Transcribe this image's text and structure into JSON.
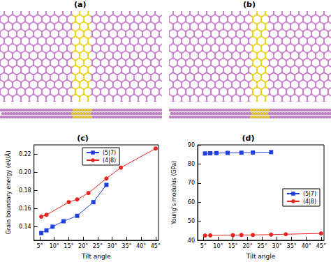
{
  "panels": [
    {
      "label": "(a)"
    },
    {
      "label": "(b)"
    }
  ],
  "chart_data": [
    {
      "type": "line",
      "title": "(c)",
      "x_label": "Tilt angle",
      "y_label": "Grain boundary energy (eV/Å)",
      "xlim": [
        3,
        46
      ],
      "xticks": [
        {
          "value": 5,
          "label": "5°"
        },
        {
          "value": 10,
          "label": "10°"
        },
        {
          "value": 15,
          "label": "15°"
        },
        {
          "value": 20,
          "label": "20°"
        },
        {
          "value": 25,
          "label": "25°"
        },
        {
          "value": 30,
          "label": "30°"
        },
        {
          "value": 35,
          "label": "35°"
        },
        {
          "value": 40,
          "label": "40°"
        },
        {
          "value": 45,
          "label": "45°"
        }
      ],
      "ylim": [
        0.125,
        0.23
      ],
      "yticks": [
        0.14,
        0.16,
        0.18,
        {
          "value": 0.2,
          "label": "0.20"
        },
        0.22
      ],
      "grid": false,
      "legend": "upper left",
      "series": [
        {
          "name": "(5|7)",
          "color": "#1f3fe0",
          "marker": "square",
          "x": [
            5.5,
            7.3,
            9.4,
            13.2,
            17.9,
            23.5,
            28
          ],
          "values": [
            0.133,
            0.136,
            0.14,
            0.146,
            0.152,
            0.167,
            0.186
          ]
        },
        {
          "name": "(4|8)",
          "color": "#e8231f",
          "marker": "circle",
          "x": [
            5.5,
            7.3,
            15,
            17.9,
            21.8,
            28,
            33,
            45
          ],
          "values": [
            0.151,
            0.153,
            0.167,
            0.17,
            0.177,
            0.193,
            0.205,
            0.226
          ]
        }
      ]
    },
    {
      "type": "line",
      "title": "(d)",
      "x_label": "Tilt angle",
      "y_label": "Young's modulus (GPa)",
      "xlim": [
        3,
        46
      ],
      "xticks": [
        {
          "value": 5,
          "label": "5°"
        },
        {
          "value": 10,
          "label": "10°"
        },
        {
          "value": 15,
          "label": "15°"
        },
        {
          "value": 20,
          "label": "20°"
        },
        {
          "value": 25,
          "label": "25°"
        },
        {
          "value": 30,
          "label": "30°"
        },
        {
          "value": 35,
          "label": "35°"
        },
        {
          "value": 40,
          "label": "40°"
        },
        {
          "value": 45,
          "label": "45°"
        }
      ],
      "ylim": [
        40,
        90
      ],
      "yticks": [
        40,
        50,
        60,
        70,
        80,
        90
      ],
      "grid": false,
      "legend": "right",
      "series": [
        {
          "name": "(5|7)",
          "color": "#1f3fe0",
          "marker": "square",
          "x": [
            5.5,
            7.3,
            9.4,
            13.2,
            17.9,
            21.8,
            28
          ],
          "values": [
            85.5,
            85.6,
            85.7,
            85.8,
            85.9,
            86.0,
            86.2
          ]
        },
        {
          "name": "(4|8)",
          "color": "#e8231f",
          "marker": "circle",
          "x": [
            5.5,
            7.3,
            15,
            17.9,
            21.8,
            28,
            33,
            45
          ],
          "values": [
            42.5,
            42.6,
            42.7,
            42.8,
            42.8,
            43.0,
            43.2,
            43.6
          ]
        }
      ]
    }
  ]
}
